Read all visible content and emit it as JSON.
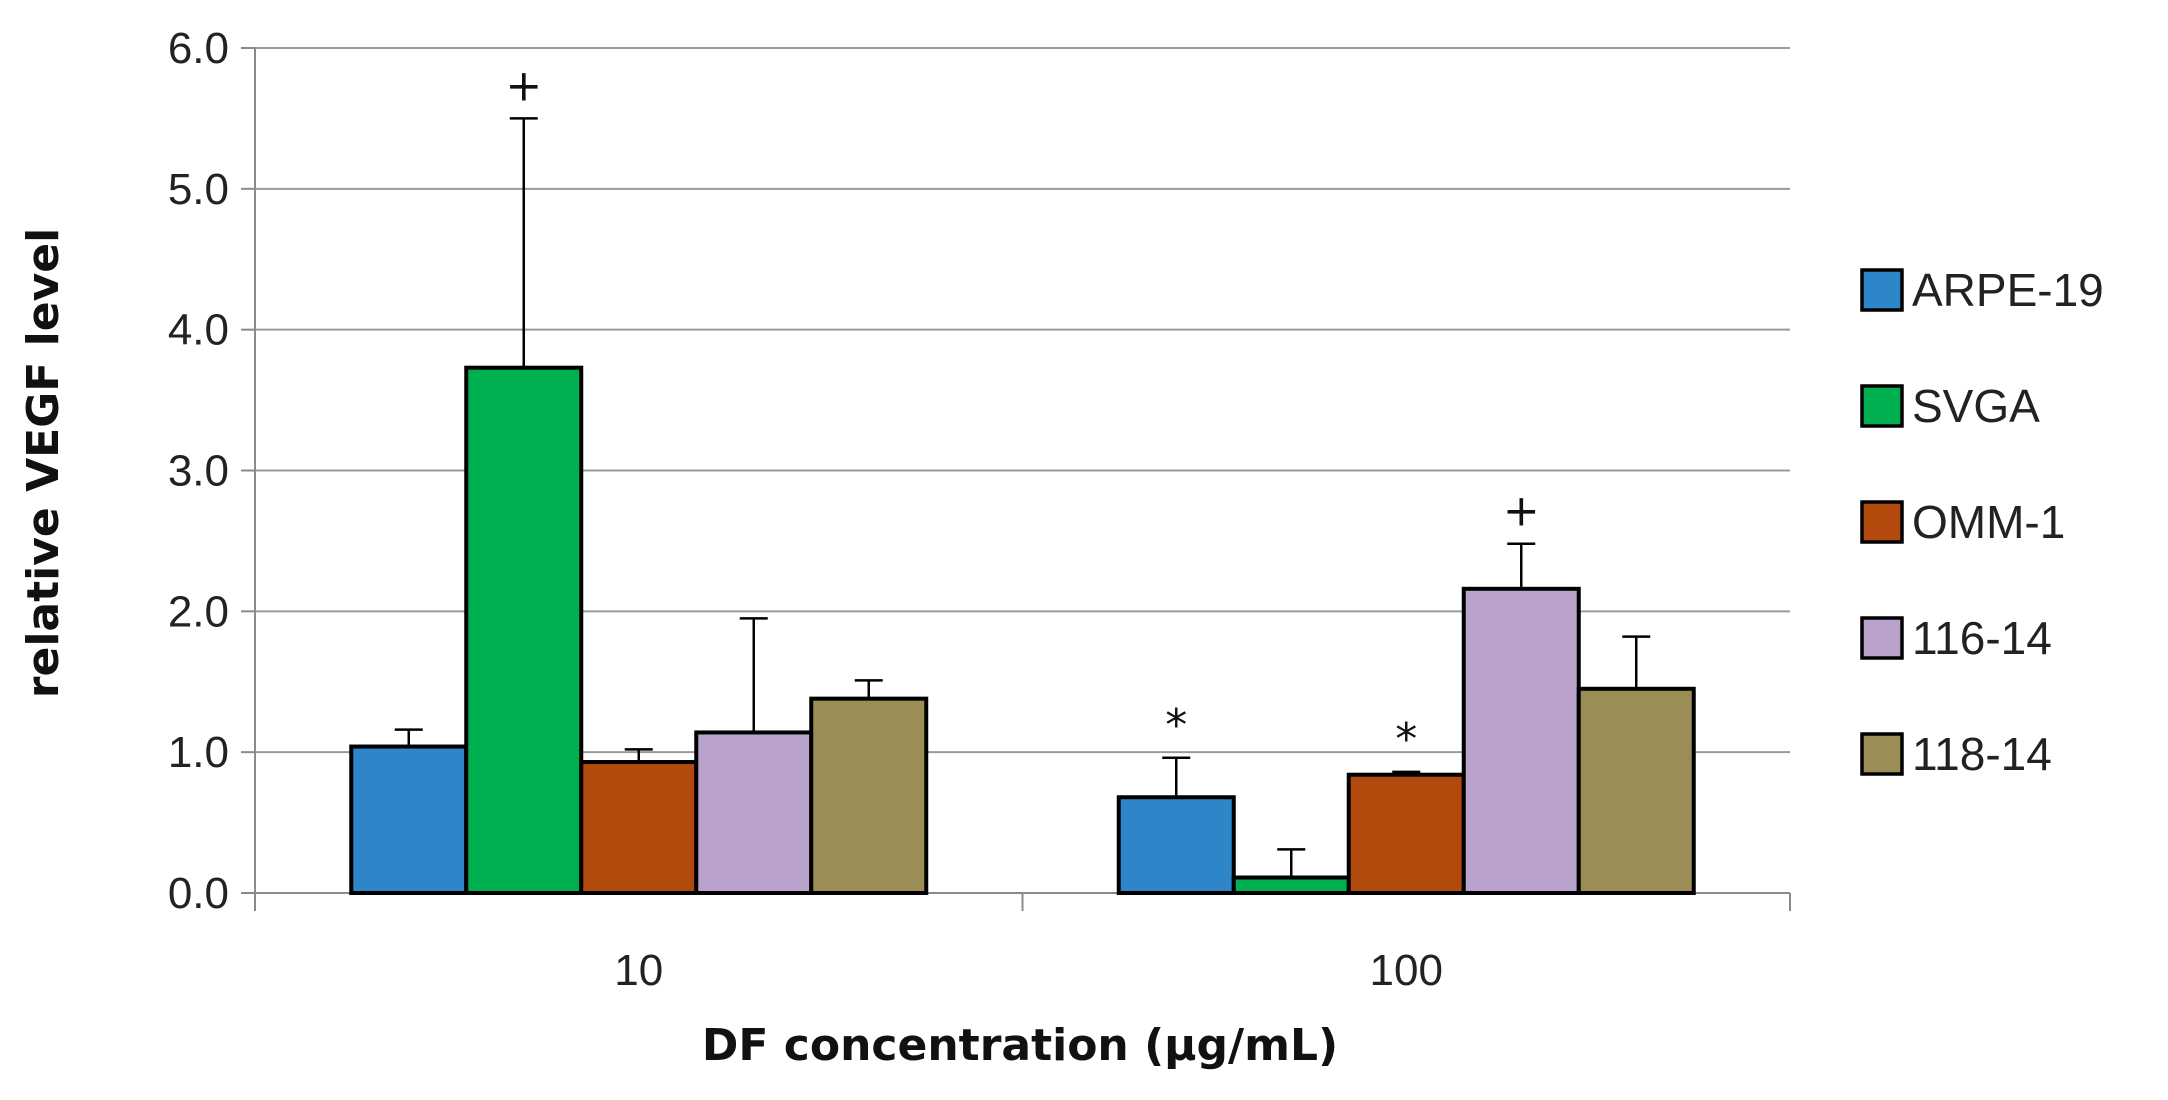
{
  "chart_data": {
    "type": "bar",
    "title": "",
    "xlabel": "DF concentration (µg/mL)",
    "ylabel": "relative VEGF level",
    "ylim": [
      0,
      6
    ],
    "yticks": [
      "0.0",
      "1.0",
      "2.0",
      "3.0",
      "4.0",
      "5.0",
      "6.0"
    ],
    "grid": true,
    "legend_position": "right",
    "categories": [
      "10",
      "100"
    ],
    "series": [
      {
        "name": "ARPE-19",
        "color": "#2E86C8",
        "values": [
          1.04,
          0.68
        ],
        "errors": [
          0.12,
          0.28
        ],
        "annotations": [
          "",
          "*"
        ]
      },
      {
        "name": "SVGA",
        "color": "#00B050",
        "values": [
          3.73,
          0.11
        ],
        "errors": [
          1.77,
          0.2
        ],
        "annotations": [
          "+",
          ""
        ]
      },
      {
        "name": "OMM-1",
        "color": "#B14A0C",
        "values": [
          0.93,
          0.84
        ],
        "errors": [
          0.09,
          0.02
        ],
        "annotations": [
          "",
          "*"
        ]
      },
      {
        "name": "116-14",
        "color": "#B9A3CC",
        "values": [
          1.14,
          2.16
        ],
        "errors": [
          0.81,
          0.32
        ],
        "annotations": [
          "",
          "+"
        ]
      },
      {
        "name": "118-14",
        "color": "#9A8D55",
        "values": [
          1.38,
          1.45
        ],
        "errors": [
          0.13,
          0.37
        ],
        "annotations": [
          "",
          ""
        ]
      }
    ]
  }
}
